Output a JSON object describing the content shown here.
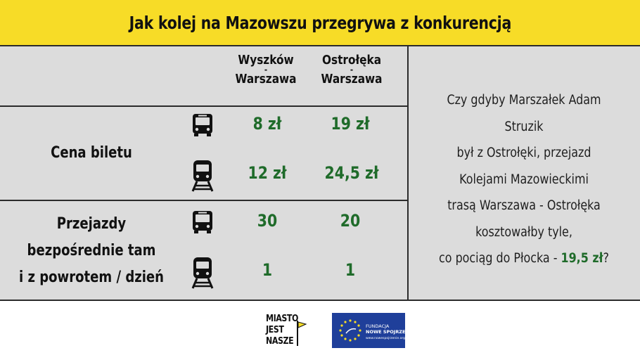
{
  "header": {
    "title": "Jak kolej na Mazowszu przegrywa z konkurencją"
  },
  "columns": [
    {
      "line1": "Wyszków",
      "dash": "-",
      "line2": "Warszawa"
    },
    {
      "line1": "Ostrołęka",
      "dash": "-",
      "line2": "Warszawa"
    }
  ],
  "rows": {
    "price": {
      "label": "Cena biletu",
      "bus": [
        "8 zł",
        "19 zł"
      ],
      "train": [
        "12 zł",
        "24,5 zł"
      ]
    },
    "trips": {
      "label_lines": [
        "Przejazdy",
        "bezpośrednie tam",
        "i z powrotem / dzień"
      ],
      "bus": [
        "30",
        "20"
      ],
      "train": [
        "1",
        "1"
      ]
    }
  },
  "icons": {
    "bus": "bus-icon",
    "train": "train-icon"
  },
  "side_text": {
    "lines": [
      "Czy gdyby Marszałek Adam Struzik",
      "był z Ostrołęki,  przejazd",
      "Kolejami Mazowieckimi",
      "trasą Warszawa - Ostrołęka",
      "kosztowałby tyle,"
    ],
    "last_prefix": "co pociąg do Płocka - ",
    "last_highlight": "19,5 zł",
    "last_suffix": "?"
  },
  "logos": {
    "miasto": [
      "MIASTO",
      "JEST",
      "NASZE"
    ],
    "fundacja": [
      "FUNDACJA",
      "NOWE SPOJRZENIE",
      "www.nowespojrzenie.org"
    ]
  },
  "colors": {
    "header_bg": "#f7dc27",
    "table_bg": "#dcdcdc",
    "accent_green": "#1f6b2a",
    "logo_blue": "#1f3f9a"
  }
}
